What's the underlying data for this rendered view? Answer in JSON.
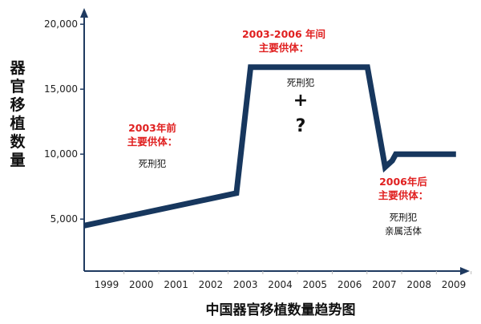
{
  "chart_data": {
    "type": "line",
    "title": "中国器官移植数量趋势图",
    "ylabel_chars": [
      "器",
      "官",
      "移",
      "植",
      "数",
      "量"
    ],
    "x_ticks": [
      "1999",
      "2000",
      "2001",
      "2002",
      "2003",
      "2004",
      "2005",
      "2006",
      "2007",
      "2008",
      "2009"
    ],
    "y_ticks": [
      {
        "value": 5000,
        "label": "5,000"
      },
      {
        "value": 10000,
        "label": "10,000"
      },
      {
        "value": 15000,
        "label": "15,000"
      },
      {
        "value": 20000,
        "label": "20,000"
      }
    ],
    "xlim": [
      1998.2,
      2009.0
    ],
    "ylim": [
      1000,
      21000
    ],
    "grid": false,
    "line_color": "#17375e",
    "series": [
      {
        "x": [
          1998.2,
          2002.5,
          2002.9,
          2006.2,
          2006.7,
          2006.9,
          2007.0,
          2008.7
        ],
        "y": [
          4500,
          7000,
          16700,
          16700,
          9000,
          9500,
          10000,
          10000
        ]
      }
    ],
    "annotations": [
      {
        "id": "pre2003",
        "lines": [
          {
            "text": "2003年前",
            "style": "red"
          },
          {
            "text": "主要供体：",
            "style": "red"
          },
          {
            "text": "死刑犯",
            "style": "black"
          }
        ]
      },
      {
        "id": "mid",
        "lines": [
          {
            "text": "2003-2006 年间",
            "style": "red"
          },
          {
            "text": "主要供体：",
            "style": "red"
          }
        ]
      },
      {
        "id": "mid_body",
        "lines": [
          {
            "text": "死刑犯",
            "style": "black"
          },
          {
            "text": "+",
            "style": "sym"
          },
          {
            "text": "?",
            "style": "sym"
          }
        ]
      },
      {
        "id": "post2006",
        "lines": [
          {
            "text": "2006年后",
            "style": "red"
          },
          {
            "text": "主要供体：",
            "style": "red"
          },
          {
            "text": "死刑犯",
            "style": "black"
          },
          {
            "text": "亲属活体",
            "style": "black"
          }
        ]
      }
    ]
  }
}
